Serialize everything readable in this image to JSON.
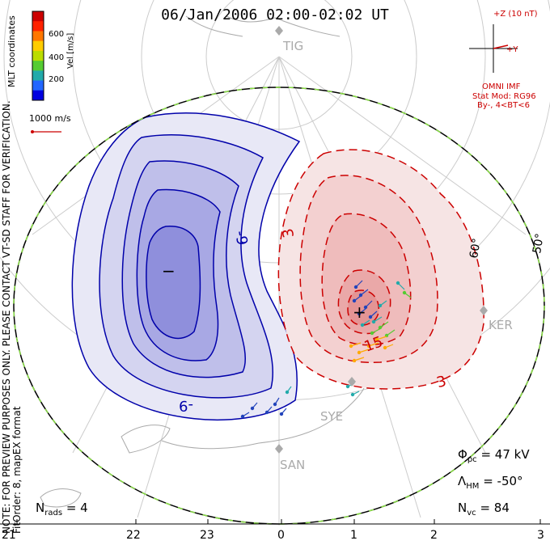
{
  "title": "06/Jan/2006 02:00-02:02 UT",
  "side_note": {
    "line1": "NOTE: FOR PREVIEW PURPOSES ONLY. PLEASE CONTACT VT-SD STAFF FOR VERIFICATION.",
    "line2": "FitOrder: 8, mapEX format"
  },
  "coordinates_label": "MLT coordinates",
  "colorbar": {
    "unit_label": "Vel [m/s]",
    "ticks": [
      "600",
      "400",
      "200"
    ],
    "colors": [
      "#0000e0",
      "#2266ff",
      "#22aaaa",
      "#55cc33",
      "#bbdd00",
      "#ffcc00",
      "#ff7700",
      "#ff2200",
      "#cc0000"
    ]
  },
  "vector_scale": "1000 m/s",
  "imf": {
    "z_label": "+Z (10 nT)",
    "y_label": "+Y",
    "source": "OMNI IMF",
    "model_line1": "Stat Mod: RG96",
    "model_line2": "By-, 4<BT<6"
  },
  "stats": {
    "phi_pc_symbol": "Φ",
    "phi_pc_sub": "pc",
    "phi_pc_value": "= 47 kV",
    "lambda_symbol": "Λ",
    "lambda_sub": "HM",
    "lambda_value": "= -50°",
    "nvc_symbol": "N",
    "nvc_sub": "vc",
    "nvc_value": "= 84",
    "nrads_symbol": "N",
    "nrads_sub": "rads",
    "nrads_value": "= 4"
  },
  "mlt_ticks": [
    "21",
    "22",
    "23",
    "0",
    "1",
    "2",
    "3"
  ],
  "lat_labels": [
    "60°",
    "50°"
  ],
  "stations": [
    "TIG",
    "KER",
    "SYE",
    "SAN"
  ],
  "contours": {
    "negative_labels": [
      "-9",
      "-9"
    ],
    "negative_extremum": "−",
    "positive_labels": [
      "3",
      "3",
      "15"
    ],
    "positive_extremum": "+",
    "negative_color": "#0000aa",
    "positive_color": "#cc0000"
  }
}
